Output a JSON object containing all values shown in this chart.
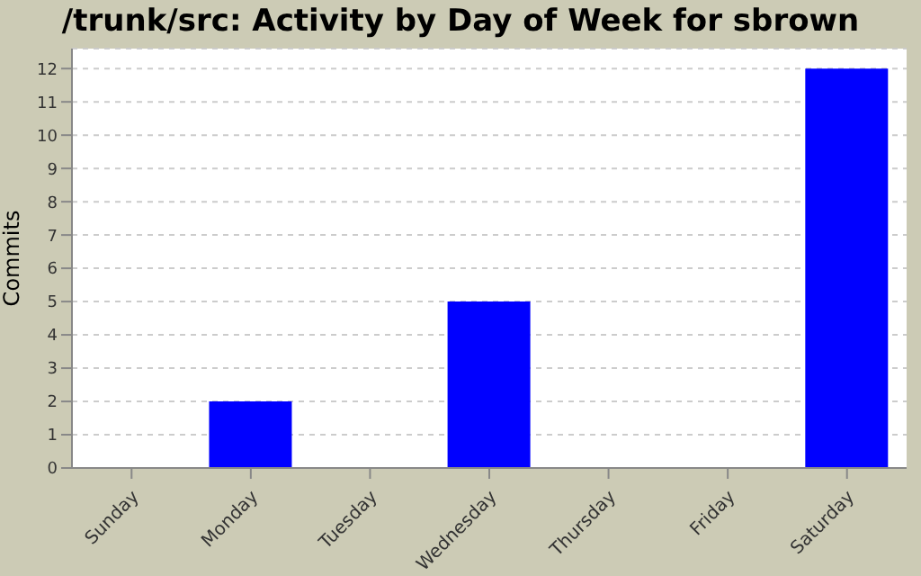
{
  "chart_data": {
    "type": "bar",
    "title": "/trunk/src: Activity by Day of Week for sbrown",
    "ylabel": "Commits",
    "categories": [
      "Sunday",
      "Monday",
      "Tuesday",
      "Wednesday",
      "Thursday",
      "Friday",
      "Saturday"
    ],
    "values": [
      0,
      2,
      0,
      5,
      0,
      0,
      12
    ],
    "color": "#0000ff",
    "ylim": [
      0,
      12.6
    ],
    "yticks": [
      0,
      1,
      2,
      3,
      4,
      5,
      6,
      7,
      8,
      9,
      10,
      11,
      12
    ],
    "grid": "y"
  }
}
